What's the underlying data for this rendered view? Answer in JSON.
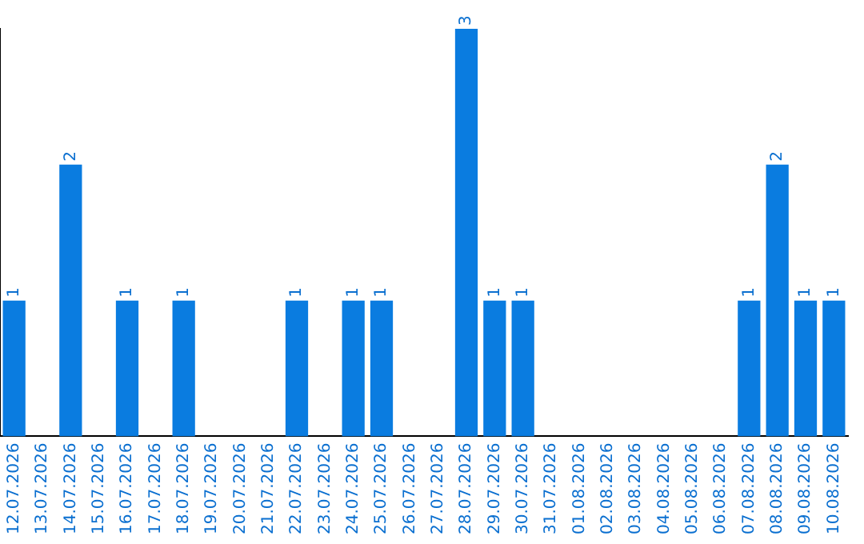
{
  "chart_data": {
    "type": "bar",
    "categories": [
      "12.07.2026",
      "13.07.2026",
      "14.07.2026",
      "15.07.2026",
      "16.07.2026",
      "17.07.2026",
      "18.07.2026",
      "19.07.2026",
      "20.07.2026",
      "21.07.2026",
      "22.07.2026",
      "23.07.2026",
      "24.07.2026",
      "25.07.2026",
      "26.07.2026",
      "27.07.2026",
      "28.07.2026",
      "29.07.2026",
      "30.07.2026",
      "31.07.2026",
      "01.08.2026",
      "02.08.2026",
      "03.08.2026",
      "04.08.2026",
      "05.08.2026",
      "06.08.2026",
      "07.08.2026",
      "08.08.2026",
      "09.08.2026",
      "10.08.2026"
    ],
    "values": [
      1,
      0,
      2,
      0,
      1,
      0,
      1,
      0,
      0,
      0,
      1,
      0,
      1,
      1,
      0,
      0,
      3,
      1,
      1,
      0,
      0,
      0,
      0,
      0,
      0,
      0,
      1,
      2,
      1,
      1
    ],
    "value_labels": [
      "1",
      null,
      "2",
      null,
      "1",
      null,
      "1",
      null,
      null,
      null,
      "1",
      null,
      "1",
      "1",
      null,
      null,
      "3",
      "1",
      "1",
      null,
      null,
      null,
      null,
      null,
      null,
      null,
      "1",
      "2",
      "1",
      "1"
    ],
    "color": "#0a7ce0",
    "ylim": [
      0,
      3
    ],
    "tick_labels": "x",
    "grid": false,
    "legend": false
  }
}
